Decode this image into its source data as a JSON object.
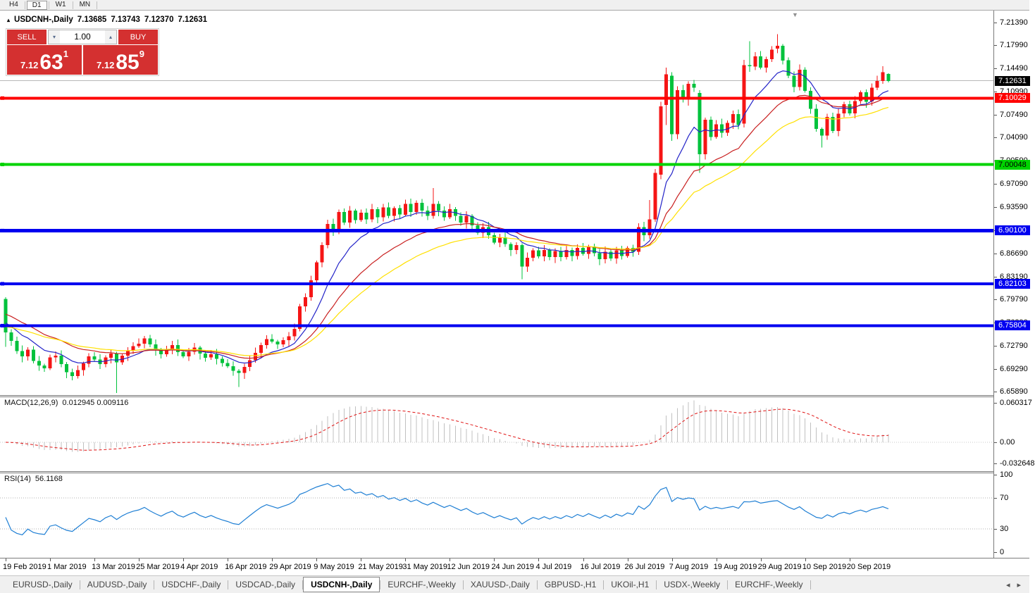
{
  "toolbar": {
    "timeframes": [
      "H4",
      "D1",
      "W1",
      "MN"
    ],
    "active_timeframe": "D1"
  },
  "chart_header": {
    "collapse_icon": "▴",
    "symbol": "USDCNH-,Daily",
    "open": "7.13685",
    "high": "7.13743",
    "low": "7.12370",
    "close": "7.12631",
    "shift_marker_icon": "▼"
  },
  "trade_panel": {
    "sell_label": "SELL",
    "buy_label": "BUY",
    "volume": "1.00",
    "down_icon": "▾",
    "up_icon": "▴",
    "sell_price_main": "7.12",
    "sell_price_big": "63",
    "sell_price_sup": "1",
    "buy_price_main": "7.12",
    "buy_price_big": "85",
    "buy_price_sup": "9"
  },
  "price_axis": {
    "ticks": [
      "7.21390",
      "7.17990",
      "7.14490",
      "7.10990",
      "7.07490",
      "7.04090",
      "7.00590",
      "6.97090",
      "6.93590",
      "6.90100",
      "6.86690",
      "6.83190",
      "6.79790",
      "6.76290",
      "6.72790",
      "6.69290",
      "6.65890"
    ],
    "current_price": "7.12631"
  },
  "levels": [
    {
      "label": "7.10029",
      "price": 7.10029,
      "color": "#ff0000",
      "text_color": "#ffffff",
      "width": 4
    },
    {
      "label": "7.00048",
      "price": 7.00048,
      "color": "#00d300",
      "text_color": "#000000",
      "width": 4
    },
    {
      "label": "6.90100",
      "price": 6.901,
      "color": "#0000f0",
      "text_color": "#ffffff",
      "width": 5
    },
    {
      "label": "6.82103",
      "price": 6.82103,
      "color": "#0000f0",
      "text_color": "#ffffff",
      "width": 4
    },
    {
      "label": "6.75804",
      "price": 6.75804,
      "color": "#0000f0",
      "text_color": "#ffffff",
      "width": 4
    }
  ],
  "chart_data": {
    "type": "candlestick",
    "symbol": "USDCNH-",
    "timeframe": "Daily",
    "price_range": {
      "max": 7.2319,
      "min": 6.6536
    },
    "x_ticks": [
      {
        "label": "19 Feb 2019",
        "index": 0
      },
      {
        "label": "1 Mar 2019",
        "index": 8
      },
      {
        "label": "13 Mar 2019",
        "index": 16
      },
      {
        "label": "25 Mar 2019",
        "index": 24
      },
      {
        "label": "4 Apr 2019",
        "index": 32
      },
      {
        "label": "16 Apr 2019",
        "index": 40
      },
      {
        "label": "29 Apr 2019",
        "index": 48
      },
      {
        "label": "9 May 2019",
        "index": 56
      },
      {
        "label": "21 May 2019",
        "index": 64
      },
      {
        "label": "31 May 2019",
        "index": 72
      },
      {
        "label": "12 Jun 2019",
        "index": 80
      },
      {
        "label": "24 Jun 2019",
        "index": 88
      },
      {
        "label": "4 Jul 2019",
        "index": 96
      },
      {
        "label": "16 Jul 2019",
        "index": 104
      },
      {
        "label": "26 Jul 2019",
        "index": 112
      },
      {
        "label": "7 Aug 2019",
        "index": 120
      },
      {
        "label": "19 Aug 2019",
        "index": 128
      },
      {
        "label": "29 Aug 2019",
        "index": 136
      },
      {
        "label": "10 Sep 2019",
        "index": 144
      },
      {
        "label": "20 Sep 2019",
        "index": 152
      }
    ],
    "first_open": 6.798,
    "closes": [
      6.748,
      6.735,
      6.72,
      6.712,
      6.722,
      6.705,
      6.698,
      6.694,
      6.71,
      6.713,
      6.7,
      6.688,
      6.682,
      6.691,
      6.701,
      6.712,
      6.707,
      6.7,
      6.71,
      6.716,
      6.703,
      6.713,
      6.721,
      6.727,
      6.731,
      6.739,
      6.73,
      6.722,
      6.715,
      6.723,
      6.729,
      6.718,
      6.712,
      6.719,
      6.725,
      6.716,
      6.71,
      6.715,
      6.708,
      6.702,
      6.697,
      6.69,
      6.687,
      6.696,
      6.706,
      6.717,
      6.729,
      6.738,
      6.734,
      6.73,
      6.736,
      6.742,
      6.753,
      6.787,
      6.801,
      6.826,
      6.853,
      6.879,
      6.911,
      6.902,
      6.929,
      6.913,
      6.931,
      6.917,
      6.928,
      6.918,
      6.933,
      6.921,
      6.936,
      6.923,
      6.935,
      6.925,
      6.941,
      6.929,
      6.943,
      6.931,
      6.923,
      6.941,
      6.931,
      6.921,
      6.933,
      6.923,
      6.913,
      6.923,
      6.909,
      6.898,
      6.906,
      6.894,
      6.883,
      6.891,
      6.881,
      6.872,
      6.879,
      6.847,
      6.86,
      6.871,
      6.862,
      6.872,
      6.861,
      6.87,
      6.861,
      6.872,
      6.863,
      6.875,
      6.866,
      6.877,
      6.867,
      6.858,
      6.869,
      6.859,
      6.871,
      6.863,
      6.875,
      6.869,
      6.906,
      6.894,
      6.918,
      6.988,
      7.088,
      7.136,
      7.046,
      7.112,
      7.098,
      7.122,
      7.116,
      7.016,
      7.068,
      7.042,
      7.061,
      7.048,
      7.063,
      7.076,
      7.06,
      7.15,
      7.148,
      7.163,
      7.146,
      7.159,
      7.173,
      7.179,
      7.157,
      7.134,
      7.117,
      7.143,
      7.111,
      7.084,
      7.054,
      7.044,
      7.072,
      7.051,
      7.077,
      7.091,
      7.077,
      7.096,
      7.109,
      7.095,
      7.116,
      7.126,
      7.139,
      7.12631
    ],
    "overrides": {
      "0": [
        6.798,
        6.801,
        6.726,
        6.748
      ],
      "20": [
        6.716,
        6.719,
        6.657,
        6.703
      ],
      "42": [
        6.69,
        6.693,
        6.666,
        6.687
      ],
      "77": [
        6.923,
        6.965,
        6.919,
        6.941
      ],
      "93": [
        6.879,
        6.882,
        6.828,
        6.847
      ],
      "116": [
        6.894,
        6.947,
        6.889,
        6.918
      ],
      "118": [
        6.985,
        7.095,
        6.978,
        7.088
      ],
      "119": [
        7.09,
        7.146,
        7.06,
        7.136
      ],
      "120": [
        7.134,
        7.139,
        7.036,
        7.046
      ],
      "125": [
        7.108,
        7.112,
        6.988,
        7.016
      ],
      "133": [
        7.062,
        7.158,
        7.056,
        7.15
      ],
      "134": [
        7.15,
        7.186,
        7.14,
        7.148
      ],
      "139": [
        7.175,
        7.1965,
        7.168,
        7.179
      ],
      "147": [
        7.054,
        7.056,
        7.026,
        7.044
      ],
      "158": [
        7.126,
        7.148,
        7.122,
        7.139
      ],
      "159": [
        7.13685,
        7.13743,
        7.1237,
        7.12631
      ]
    },
    "ma": {
      "fast": {
        "period": 10,
        "seed": 6.765
      },
      "mid": {
        "period": 22,
        "seed": 6.778
      },
      "slow": {
        "period": 34,
        "seed": 6.757
      }
    },
    "colors": {
      "up": "#f51515",
      "down": "#00c23c",
      "ma_fast": "#2424c8",
      "ma_mid": "#c81e1e",
      "ma_slow": "#ffe000",
      "macd_hist": "#c0c0c0",
      "macd_signal": "#e01414",
      "rsi": "#1f7fd4",
      "current_line": "#b8b8b8"
    },
    "indicators": {
      "macd": {
        "label": "MACD(12,26,9)",
        "value": "0.012945 0.009116",
        "fast": 12,
        "slow": 26,
        "signal": 9,
        "axis_labels": [
          "0.060317",
          "0.00",
          "-0.032648"
        ]
      },
      "rsi": {
        "label": "RSI(14)",
        "value": "56.1168",
        "period": 14,
        "levels": [
          70,
          30
        ],
        "axis_labels": [
          "100",
          "70",
          "30",
          "0"
        ]
      }
    }
  },
  "tabs": {
    "items": [
      "EURUSD-,Daily",
      "AUDUSD-,Daily",
      "USDCHF-,Daily",
      "USDCAD-,Daily",
      "USDCNH-,Daily",
      "EURCHF-,Weekly",
      "XAUUSD-,Daily",
      "GBPUSD-,H1",
      "UKOil-,H1",
      "USDX-,Weekly",
      "EURCHF-,Weekly"
    ],
    "active": "USDCNH-,Daily",
    "left_icon": "◂",
    "right_icon": "▸"
  }
}
